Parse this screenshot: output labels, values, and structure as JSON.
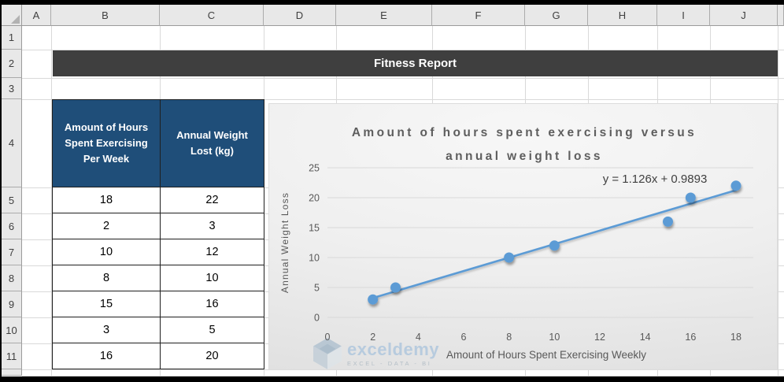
{
  "spreadsheet": {
    "column_headers": [
      "A",
      "B",
      "C",
      "D",
      "E",
      "F",
      "G",
      "H",
      "I",
      "J"
    ],
    "row_headers": [
      "1",
      "2",
      "3",
      "4",
      "5",
      "6",
      "7",
      "8",
      "9",
      "10",
      "11"
    ]
  },
  "banner": {
    "title": "Fitness Report"
  },
  "table": {
    "col1_header": "Amount of Hours Spent Exercising Per Week",
    "col2_header": "Annual Weight Lost (kg)",
    "rows": [
      [
        18,
        22
      ],
      [
        2,
        3
      ],
      [
        10,
        12
      ],
      [
        8,
        10
      ],
      [
        15,
        16
      ],
      [
        3,
        5
      ],
      [
        16,
        20
      ]
    ]
  },
  "chart_data": {
    "type": "scatter",
    "title": "Amount of hours spent exercising versus annual weight loss",
    "title_lines": [
      "Amount of hours spent exercising versus",
      "annual weight loss"
    ],
    "xlabel": "Amount of Hours Spent Exercising Weekly",
    "ylabel": "Annual Weight Loss",
    "points": [
      [
        2,
        3
      ],
      [
        3,
        5
      ],
      [
        8,
        10
      ],
      [
        10,
        12
      ],
      [
        15,
        16
      ],
      [
        16,
        20
      ],
      [
        18,
        22
      ]
    ],
    "trendline": {
      "label": "y = 1.126x + 0.9893",
      "slope": 1.126,
      "intercept": 0.9893,
      "x_start": 2,
      "x_end": 18
    },
    "xlim": [
      0,
      18
    ],
    "ylim": [
      0,
      25
    ],
    "xticks": [
      0,
      2,
      4,
      6,
      8,
      10,
      12,
      14,
      16,
      18
    ],
    "yticks": [
      0,
      5,
      10,
      15,
      20,
      25
    ],
    "grid": true,
    "legend": false,
    "marker_color": "#5b9bd5",
    "line_color": "#5b9bd5",
    "watermark": {
      "brand": "exceldemy",
      "tagline": "EXCEL - DATA - BI"
    }
  },
  "colors": {
    "banner_bg": "#3f3f3f",
    "table_header_bg": "#1f4e79",
    "accent_blue": "#5b9bd5"
  }
}
